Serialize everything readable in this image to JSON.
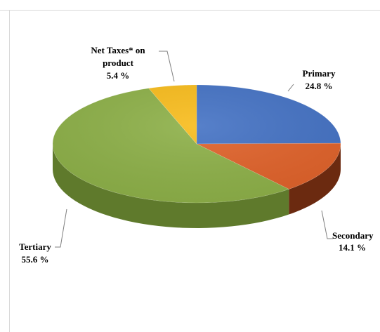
{
  "chart_data": {
    "type": "pie",
    "style": "3d",
    "slices": [
      {
        "category": "Primary",
        "value": 24.8,
        "percent_label": "24.8 %",
        "color": "#4472c4",
        "side_color": "#2e4e8a"
      },
      {
        "category": "Secondary",
        "value": 14.1,
        "percent_label": "14.1 %",
        "color": "#e0622a",
        "side_color": "#6b2a10"
      },
      {
        "category": "Tertiary",
        "value": 55.6,
        "percent_label": "55.6 %",
        "color": "#8db048",
        "side_color": "#5f7a2c"
      },
      {
        "category": "Net Taxes* on product",
        "category_lines": [
          "Net Taxes* on",
          "product"
        ],
        "value": 5.4,
        "percent_label": "5.4 %",
        "color": "#f8bc1c",
        "side_color": "#a67a08"
      }
    ]
  }
}
